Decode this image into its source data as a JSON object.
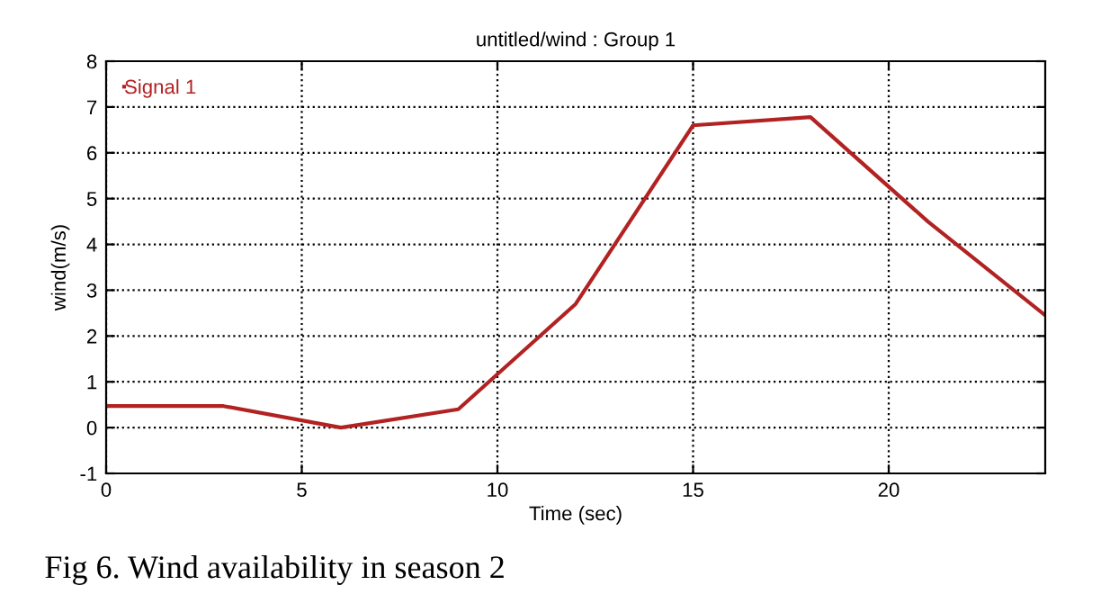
{
  "chart_data": {
    "type": "line",
    "title": "untitled/wind : Group 1",
    "xlabel": "Time (sec)",
    "ylabel": "wind(m/s)",
    "x": [
      0,
      3,
      6,
      9,
      12,
      15,
      18,
      21,
      24
    ],
    "series": [
      {
        "name": "Signal 1",
        "color": "#b22222",
        "values": [
          0.47,
          0.47,
          0,
          0.4,
          2.7,
          6.6,
          6.78,
          4.5,
          2.45
        ]
      }
    ],
    "xlim": [
      0,
      24
    ],
    "xticks": [
      0,
      5,
      10,
      15,
      20
    ],
    "ylim": [
      -1,
      8
    ],
    "yticks": [
      -1,
      0,
      1,
      2,
      3,
      4,
      5,
      6,
      7,
      8
    ],
    "grid": true,
    "legend": "top left",
    "line_style": "solid",
    "marker": "none",
    "annotations": [
      "Fig 6. Wind availability in season 2"
    ]
  }
}
